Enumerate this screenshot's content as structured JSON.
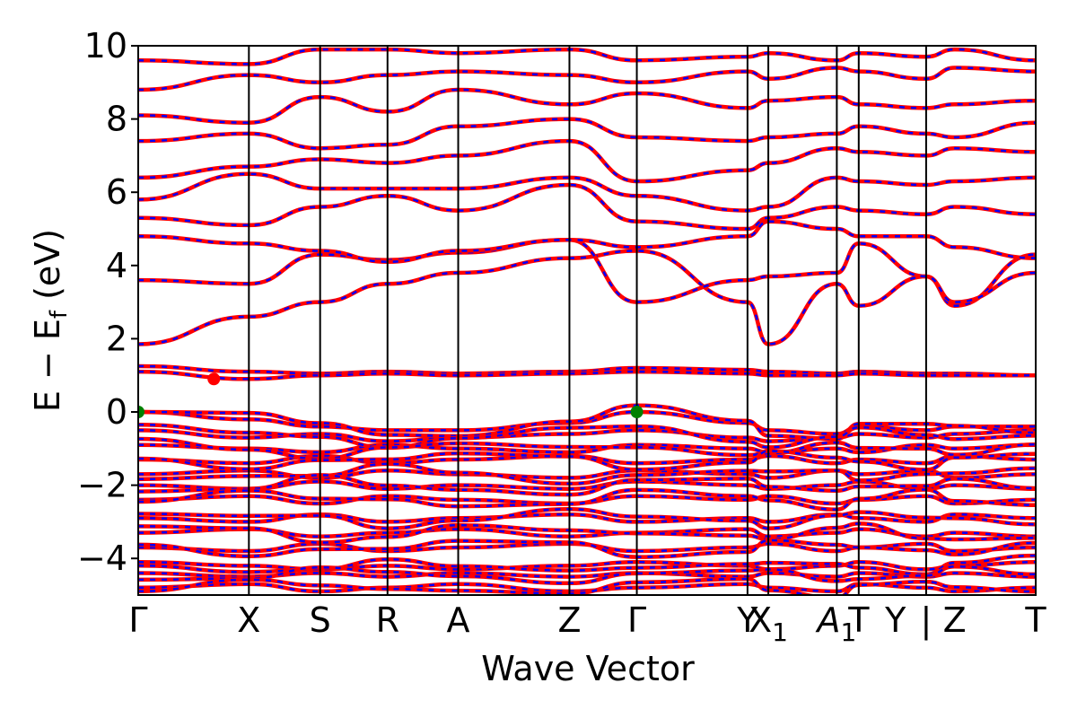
{
  "chart_data": {
    "type": "line",
    "title": "",
    "xlabel": "Wave Vector",
    "ylabel": "E − E",
    "ylabel_sub": "f",
    "ylabel_unit": "(eV)",
    "ylim": [
      -5,
      10
    ],
    "yticks": [
      {
        "value": 10,
        "label": "10"
      },
      {
        "value": 8,
        "label": "8"
      },
      {
        "value": 6,
        "label": "6"
      },
      {
        "value": 4,
        "label": "4"
      },
      {
        "value": 2,
        "label": "2"
      },
      {
        "value": 0,
        "label": "0"
      },
      {
        "value": -2,
        "label": "−2"
      },
      {
        "value": -4,
        "label": "−4"
      }
    ],
    "xlim": [
      0,
      1
    ],
    "kpoints": [
      {
        "pos": 0.0,
        "label": "Γ"
      },
      {
        "pos": 0.202,
        "label": "X"
      },
      {
        "pos": 0.332,
        "label": "S"
      },
      {
        "pos": 0.455,
        "label": "R"
      },
      {
        "pos": 0.584,
        "label": "A"
      },
      {
        "pos": 0.787,
        "label": "Z"
      },
      {
        "pos": 0.91,
        "label": "Γ"
      },
      {
        "pos": 1.112,
        "label": "Y"
      },
      {
        "pos": 1.15,
        "label": "X",
        "sub": "1"
      },
      {
        "pos": 1.275,
        "label": "A",
        "sub": "1",
        "italic": true
      },
      {
        "pos": 1.315,
        "label": "T"
      },
      {
        "pos": 1.382,
        "label": "Y"
      },
      {
        "pos": 1.438,
        "label": "|"
      },
      {
        "pos": 1.49,
        "label": "Z"
      },
      {
        "pos": 1.638,
        "label": "T"
      }
    ],
    "vlines": [
      0.202,
      0.332,
      0.455,
      0.584,
      0.787,
      0.91,
      1.112,
      1.15,
      1.275,
      1.315,
      1.438
    ],
    "kmax": 1.638,
    "series": [
      {
        "color": "#ff0000",
        "style": "solid"
      },
      {
        "color": "#0000ff",
        "style": "dashed"
      }
    ],
    "band_extrema": {
      "vbm": [
        {
          "k": 0.0,
          "e": 0.0
        },
        {
          "k": 0.91,
          "e": 0.0
        }
      ],
      "cbm": [
        {
          "k": 0.138,
          "e": 0.9
        }
      ],
      "vbm_color": "#008000",
      "cbm_color": "#ff0000"
    },
    "conduction_bands": [
      [
        1.85,
        2.6,
        3.0,
        3.5,
        3.8,
        4.2,
        4.4,
        3.0,
        1.85,
        3.5,
        2.9,
        3.7,
        2.9,
        4.3
      ],
      [
        3.6,
        3.5,
        4.3,
        4.15,
        4.35,
        4.7,
        3.0,
        3.6,
        3.7,
        3.8,
        4.6,
        3.7,
        3.0,
        3.8
      ],
      [
        4.8,
        4.6,
        4.4,
        4.1,
        4.4,
        4.7,
        4.5,
        4.8,
        5.2,
        5.0,
        4.8,
        4.8,
        4.5,
        4.2
      ],
      [
        5.3,
        5.1,
        5.6,
        5.9,
        5.5,
        6.2,
        5.2,
        5.0,
        5.3,
        5.6,
        5.5,
        5.4,
        5.6,
        5.4
      ],
      [
        5.8,
        6.5,
        6.1,
        6.1,
        6.1,
        6.4,
        5.9,
        5.5,
        5.6,
        6.4,
        6.3,
        6.2,
        6.3,
        6.4
      ],
      [
        6.4,
        6.7,
        6.9,
        6.8,
        7.0,
        7.4,
        6.3,
        6.6,
        6.8,
        7.2,
        7.1,
        7.0,
        7.2,
        7.1
      ],
      [
        7.4,
        7.6,
        7.2,
        7.3,
        7.8,
        8.0,
        7.5,
        7.4,
        7.5,
        7.6,
        7.8,
        7.6,
        7.5,
        7.9
      ],
      [
        8.1,
        7.9,
        8.6,
        8.2,
        8.8,
        8.4,
        8.7,
        8.3,
        8.5,
        8.6,
        8.4,
        8.3,
        8.4,
        8.5
      ],
      [
        8.8,
        9.2,
        9.0,
        9.2,
        9.3,
        9.2,
        9.0,
        9.3,
        9.1,
        9.4,
        9.3,
        9.1,
        9.4,
        9.3
      ],
      [
        9.6,
        9.5,
        9.9,
        9.9,
        9.8,
        9.9,
        9.6,
        9.7,
        9.8,
        9.6,
        9.8,
        9.7,
        9.9,
        9.6
      ]
    ],
    "mid_bands": [
      [
        1.25,
        1.1,
        1.05,
        1.1,
        1.05,
        1.1,
        1.2,
        1.15,
        1.1,
        1.05,
        1.1,
        1.05,
        1.05,
        1.0
      ],
      [
        1.1,
        0.9,
        1.0,
        1.05,
        1.0,
        1.05,
        1.1,
        1.05,
        1.0,
        1.0,
        1.05,
        1.0,
        1.0,
        1.0
      ]
    ],
    "valence_bands": [
      [
        0.0,
        -0.2,
        -0.4,
        -0.5,
        -0.5,
        -0.3,
        0.0,
        -0.3,
        -0.5,
        -0.6,
        -0.4,
        -0.5,
        -0.4,
        -0.4
      ],
      [
        -0.5,
        -0.7,
        -0.6,
        -0.8,
        -0.7,
        -0.6,
        -0.5,
        -0.7,
        -0.8,
        -0.7,
        -0.6,
        -0.7,
        -0.6,
        -0.5
      ],
      [
        -0.9,
        -1.0,
        -1.1,
        -0.9,
        -1.0,
        -1.1,
        -0.9,
        -1.0,
        -1.1,
        -1.0,
        -1.1,
        -0.9,
        -1.0,
        -0.9
      ],
      [
        -1.3,
        -1.4,
        -1.2,
        -1.4,
        -1.3,
        -1.2,
        -1.4,
        -1.3,
        -1.2,
        -1.4,
        -1.3,
        -1.4,
        -1.2,
        -1.3
      ],
      [
        -1.7,
        -1.6,
        -1.8,
        -1.6,
        -1.7,
        -1.8,
        -1.6,
        -1.7,
        -1.8,
        -1.6,
        -1.7,
        -1.6,
        -1.8,
        -1.7
      ],
      [
        -2.0,
        -2.1,
        -1.9,
        -2.1,
        -2.0,
        -2.1,
        -1.9,
        -2.0,
        -2.1,
        -2.0,
        -1.9,
        -2.1,
        -2.0,
        -2.1
      ],
      [
        -2.4,
        -2.3,
        -2.5,
        -2.3,
        -2.4,
        -2.5,
        -2.3,
        -2.4,
        -2.3,
        -2.5,
        -2.4,
        -2.3,
        -2.5,
        -2.4
      ],
      [
        -2.9,
        -3.0,
        -2.8,
        -3.0,
        -2.9,
        -2.8,
        -3.0,
        -2.9,
        -3.0,
        -2.8,
        -2.9,
        -3.0,
        -2.8,
        -2.9
      ],
      [
        -3.3,
        -3.2,
        -3.4,
        -3.3,
        -3.2,
        -3.4,
        -3.3,
        -3.2,
        -3.4,
        -3.3,
        -3.2,
        -3.4,
        -3.3,
        -3.4
      ],
      [
        -3.7,
        -3.8,
        -3.6,
        -3.8,
        -3.7,
        -3.6,
        -3.8,
        -3.7,
        -3.6,
        -3.8,
        -3.7,
        -3.6,
        -3.8,
        -3.7
      ],
      [
        -4.1,
        -4.2,
        -4.3,
        -4.2,
        -4.3,
        -4.2,
        -4.1,
        -4.2,
        -4.3,
        -4.2,
        -4.1,
        -4.3,
        -4.2,
        -4.1
      ],
      [
        -4.4,
        -4.5,
        -4.4,
        -4.5,
        -4.4,
        -4.5,
        -4.4,
        -4.5,
        -4.4,
        -4.5,
        -4.4,
        -4.5,
        -4.4,
        -4.5
      ],
      [
        -4.8,
        -4.7,
        -4.9,
        -4.8,
        -4.7,
        -4.9,
        -4.8,
        -4.7,
        -4.8,
        -4.9,
        -4.7,
        -4.8,
        -4.9,
        -4.8
      ]
    ]
  }
}
